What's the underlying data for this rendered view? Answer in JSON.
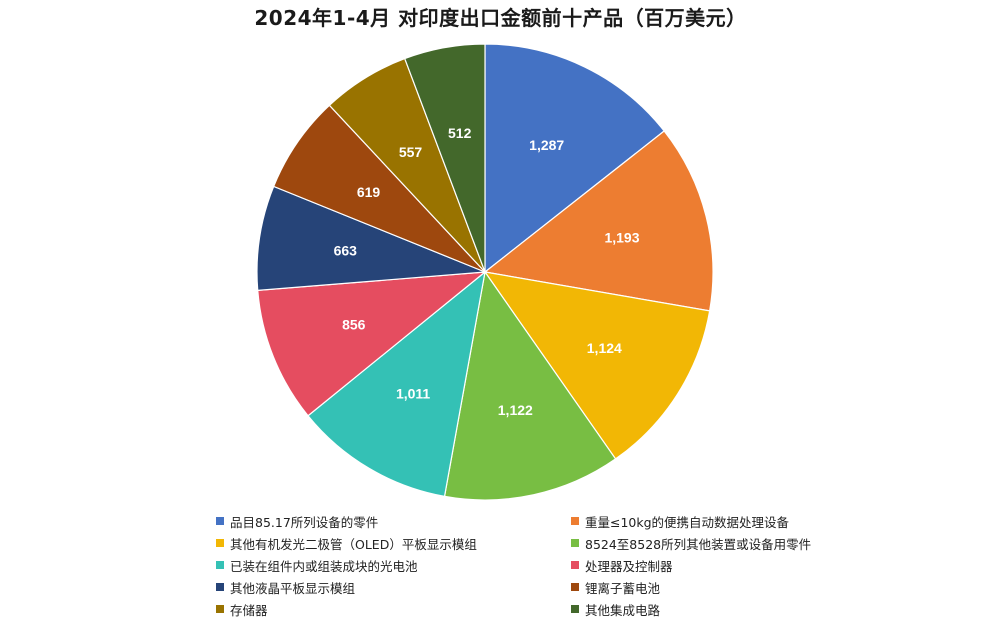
{
  "chart_data": {
    "type": "pie",
    "title": "2024年1-4月 对印度出口金额前十产品（百万美元）",
    "legend": "bottom",
    "slices": [
      {
        "label": "品目85.17所列设备的零件",
        "value": 1287,
        "color": "#4472C4"
      },
      {
        "label": "重量≤10kg的便携自动数据处理设备",
        "value": 1193,
        "color": "#ED7D31"
      },
      {
        "label": "其他有机发光二极管（OLED）平板显示模组",
        "value": 1124,
        "color": "#F2B705"
      },
      {
        "label": "8524至8528所列其他装置或设备用零件",
        "value": 1122,
        "color": "#78BE43"
      },
      {
        "label": "已装在组件内或组装成块的光电池",
        "value": 1011,
        "color": "#34C1B5"
      },
      {
        "label": "处理器及控制器",
        "value": 856,
        "color": "#E54D60"
      },
      {
        "label": "其他液晶平板显示模组",
        "value": 663,
        "color": "#264478"
      },
      {
        "label": "锂离子蓄电池",
        "value": 619,
        "color": "#9E480E"
      },
      {
        "label": "存储器",
        "value": 557,
        "color": "#997300"
      },
      {
        "label": "其他集成电路",
        "value": 512,
        "color": "#43682B"
      }
    ]
  }
}
